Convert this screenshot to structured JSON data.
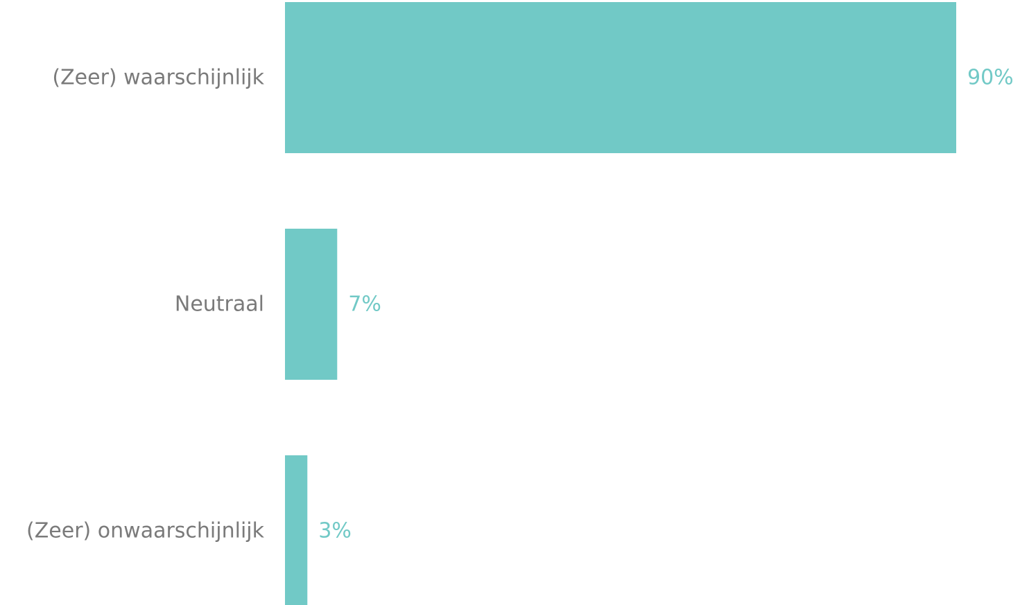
{
  "chart_data": {
    "type": "bar",
    "orientation": "horizontal",
    "categories": [
      "(Zeer) waarschijnlijk",
      "Neutraal",
      "(Zeer) onwaarschijnlijk"
    ],
    "values": [
      90,
      7,
      3
    ],
    "value_labels": [
      "90%",
      "7%",
      "3%"
    ],
    "title": "",
    "xlabel": "",
    "ylabel": "",
    "xlim": [
      0,
      90
    ],
    "grid": false
  },
  "colors": {
    "bar": "#71c9c6",
    "value_text": "#71c9c6",
    "category_text": "#7a7a7a"
  }
}
